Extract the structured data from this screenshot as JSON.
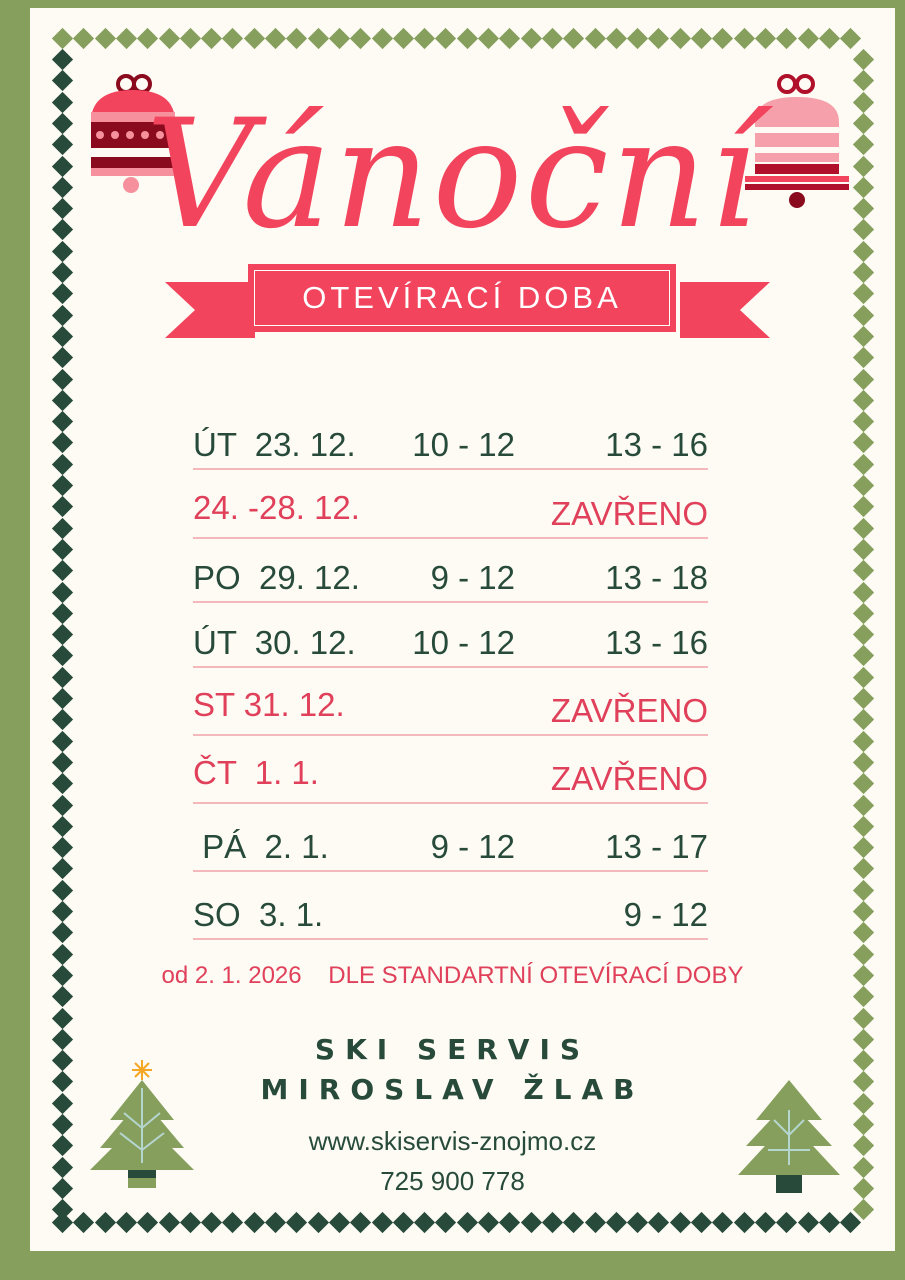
{
  "colors": {
    "frame": "#869f5d",
    "background": "#fdfbf4",
    "accent_red": "#f2445d",
    "dark_green": "#274a3a",
    "light_green": "#869f5d",
    "divider": "#f3b7bc"
  },
  "header": {
    "title": "Vánoční",
    "subtitle": "OTEVÍRACÍ DOBA"
  },
  "schedule": [
    {
      "day": "ÚT  23. 12.",
      "morning": "10 - 12",
      "afternoon": "13 - 16",
      "closed": false
    },
    {
      "day": "24. -28. 12.",
      "morning": "",
      "afternoon": "ZAVŘENO",
      "closed": true
    },
    {
      "day": "PO  29. 12.",
      "morning": "9 - 12",
      "afternoon": "13 - 18",
      "closed": false
    },
    {
      "day": "ÚT  30. 12.",
      "morning": "10 - 12",
      "afternoon": "13 - 16",
      "closed": false
    },
    {
      "day": "ST 31. 12.",
      "morning": "",
      "afternoon": "ZAVŘENO",
      "closed": true
    },
    {
      "day": "ČT  1. 1.",
      "morning": "",
      "afternoon": "ZAVŘENO",
      "closed": true
    },
    {
      "day": " PÁ  2. 1.",
      "morning": "9 - 12",
      "afternoon": "13 - 17",
      "closed": false
    },
    {
      "day": "SO  3. 1.",
      "morning": "",
      "afternoon": "9 - 12",
      "closed": false
    }
  ],
  "note": "od 2. 1. 2026    DLE STANDARTNÍ OTEVÍRACÍ DOBY",
  "footer": {
    "line1": "SKI SERVIS",
    "line2": "MIROSLAV ŽLAB",
    "website": "www.skiservis-znojmo.cz",
    "phone": "725 900 778"
  },
  "icons": [
    "bell-ornament-icon",
    "christmas-tree-icon"
  ]
}
